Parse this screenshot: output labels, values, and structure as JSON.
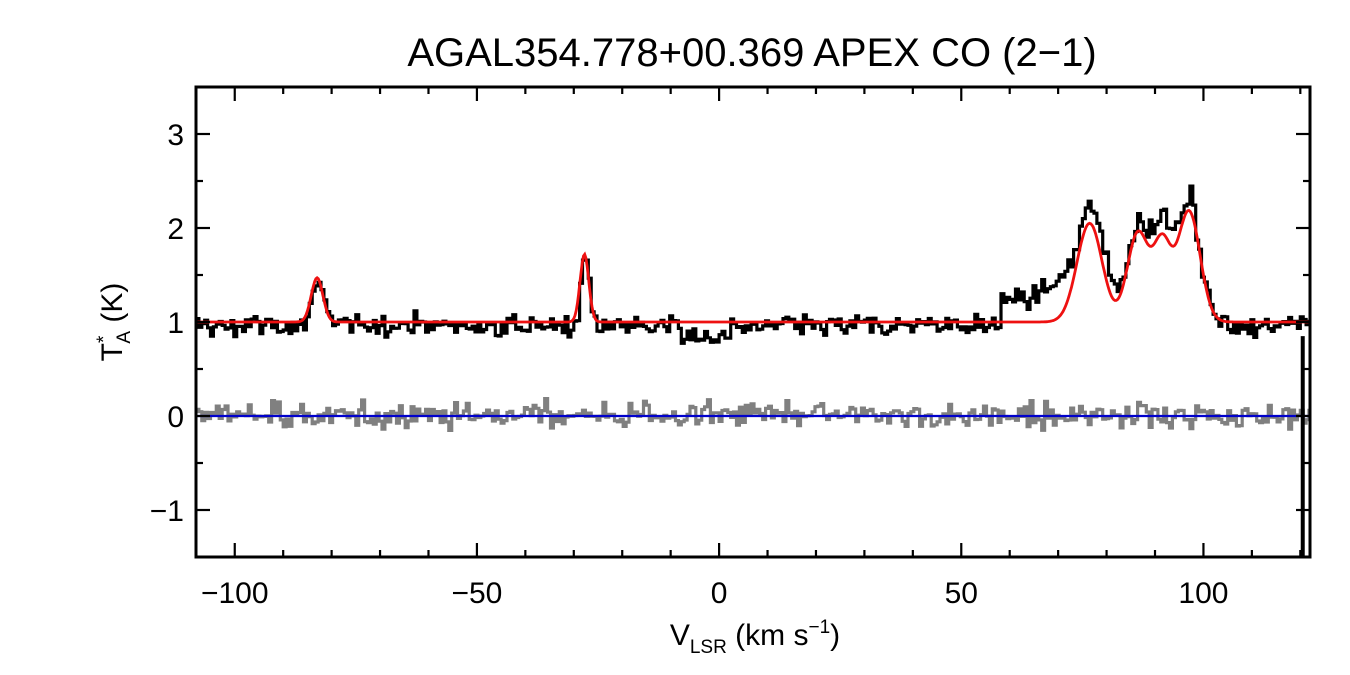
{
  "chart_data": {
    "type": "line",
    "title": "AGAL354.778+00.369  APEX CO (2−1)",
    "xlabel": {
      "main": "V",
      "sub": "LSR",
      "rest": " (km s",
      "sup": "−1",
      "end": ")"
    },
    "ylabel": {
      "main": "T",
      "sup": "*",
      "sub": "A",
      "rest": " (K)"
    },
    "xlim": [
      -108,
      122
    ],
    "ylim": [
      -1.5,
      3.5
    ],
    "x_ticks": [
      -100,
      -50,
      0,
      50,
      100
    ],
    "x_tick_labels": [
      "−100",
      "−50",
      "0",
      "50",
      "100"
    ],
    "y_ticks": [
      -1,
      0,
      1,
      2,
      3
    ],
    "y_tick_labels": [
      "−1",
      "0",
      "1",
      "2",
      "3"
    ],
    "grid": false,
    "colors": {
      "spectrum": "#000000",
      "fit": "#ee1111",
      "residual": "#808080",
      "zero_line": "#0000cc"
    },
    "series": [
      {
        "role": "spectrum",
        "baseline": 1.0,
        "noise_rms": 0.09,
        "channel_width": 0.6,
        "segments": [
          {
            "x_from": 58,
            "x_to": 66,
            "offset": 0.28
          },
          {
            "x_from": 66,
            "x_to": 72,
            "offset": 0.4
          },
          {
            "x_from": 72,
            "x_to": 80,
            "offset": 0.25
          },
          {
            "x_from": 80,
            "x_to": 98,
            "offset": 0.2
          },
          {
            "x_from": -8,
            "x_to": 2,
            "offset": -0.12
          }
        ],
        "end_spike": {
          "x": 120.5,
          "y_min": -1.5,
          "y_max": 0.85
        }
      },
      {
        "role": "fit",
        "baseline": 1.0,
        "components": [
          {
            "center": -83,
            "amplitude": 0.47,
            "sigma": 1.2
          },
          {
            "center": -27.8,
            "amplitude": 0.72,
            "sigma": 0.9
          },
          {
            "center": 76.5,
            "amplitude": 1.05,
            "sigma": 2.6
          },
          {
            "center": 86.5,
            "amplitude": 0.95,
            "sigma": 2.2
          },
          {
            "center": 91.5,
            "amplitude": 0.8,
            "sigma": 1.8
          },
          {
            "center": 97,
            "amplitude": 1.18,
            "sigma": 2.3
          }
        ]
      },
      {
        "role": "residual",
        "baseline": 0.0,
        "noise_rms": 0.1
      },
      {
        "role": "zero_line",
        "y": 0
      }
    ]
  }
}
